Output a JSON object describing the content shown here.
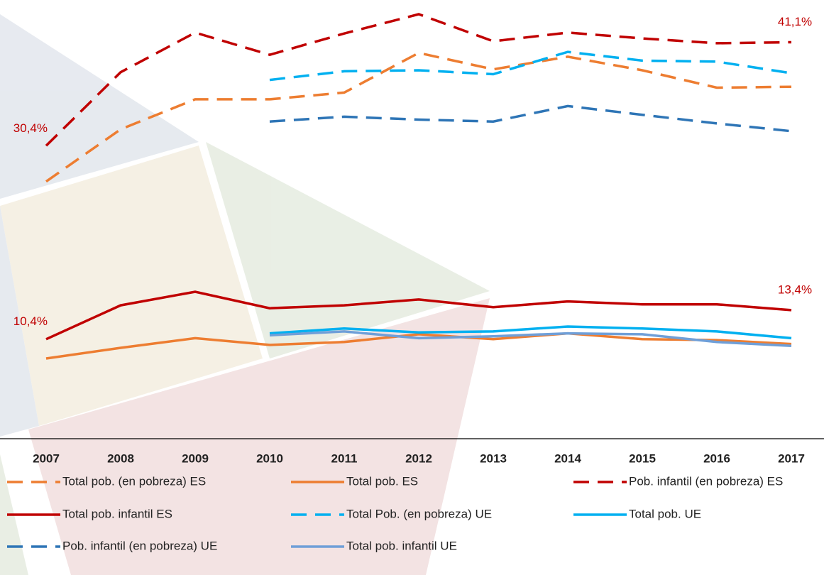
{
  "chart_data": {
    "type": "line",
    "categories": [
      "2007",
      "2008",
      "2009",
      "2010",
      "2011",
      "2012",
      "2013",
      "2014",
      "2015",
      "2016",
      "2017"
    ],
    "series": [
      {
        "name": "Total pob. (en pobreza) ES",
        "color": "#ed7d31",
        "dashed": true,
        "values": [
          26.7,
          32.1,
          35.2,
          35.2,
          35.9,
          40.0,
          38.3,
          39.6,
          38.2,
          36.4,
          36.5
        ]
      },
      {
        "name": "Total pob. ES",
        "color": "#ed7d31",
        "dashed": false,
        "values": [
          8.4,
          9.5,
          10.5,
          9.8,
          10.1,
          10.9,
          10.4,
          11.0,
          10.4,
          10.3,
          9.9
        ]
      },
      {
        "name": "Pob. infantil (en pobreza) ES",
        "color": "#c00000",
        "dashed": true,
        "values": [
          30.4,
          38.0,
          42.1,
          39.8,
          42.0,
          44.0,
          41.2,
          42.1,
          41.5,
          41.0,
          41.1
        ],
        "value_labels": [
          "30,4%",
          null,
          null,
          null,
          null,
          null,
          null,
          null,
          null,
          null,
          "41,1%"
        ]
      },
      {
        "name": "Total pob. infantil ES",
        "color": "#c00000",
        "dashed": false,
        "values": [
          10.4,
          13.9,
          15.3,
          13.6,
          13.9,
          14.5,
          13.7,
          14.3,
          14.0,
          14.0,
          13.4
        ],
        "value_labels": [
          "10,4%",
          null,
          null,
          null,
          null,
          null,
          null,
          null,
          null,
          null,
          "13,4%"
        ]
      },
      {
        "name": "Total Pob. (en pobreza) UE",
        "color": "#00b0f0",
        "dashed": true,
        "values": [
          null,
          null,
          null,
          37.2,
          38.1,
          38.2,
          37.8,
          40.1,
          39.2,
          39.1,
          37.9
        ]
      },
      {
        "name": "Total pob. UE",
        "color": "#00b0f0",
        "dashed": false,
        "values": [
          null,
          null,
          null,
          11.0,
          11.5,
          11.1,
          11.2,
          11.7,
          11.5,
          11.2,
          10.5
        ]
      },
      {
        "name": "Pob. infantil (en pobreza) UE",
        "color": "#2e75b6",
        "dashed": true,
        "values": [
          null,
          null,
          null,
          32.9,
          33.4,
          33.1,
          32.9,
          34.5,
          33.6,
          32.7,
          31.9
        ]
      },
      {
        "name": "Total pob. infantil UE",
        "color": "#6f9fd8",
        "dashed": false,
        "values": [
          null,
          null,
          null,
          10.8,
          11.2,
          10.5,
          10.7,
          11.0,
          10.9,
          10.1,
          9.7
        ]
      }
    ]
  }
}
